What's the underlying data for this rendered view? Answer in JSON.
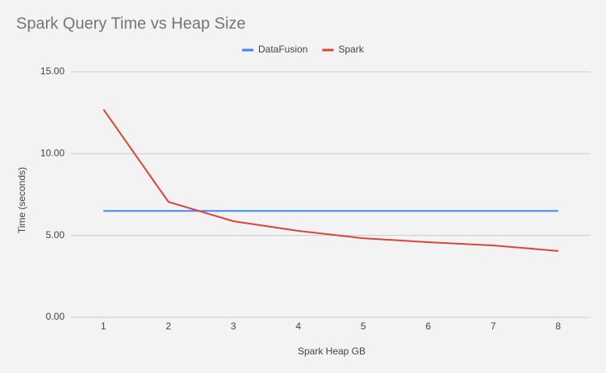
{
  "chart_data": {
    "type": "line",
    "title": "Spark Query Time vs Heap Size",
    "x_label": "Spark Heap GB",
    "y_label": "Time (seconds)",
    "categories": [
      "1",
      "2",
      "3",
      "4",
      "5",
      "6",
      "7",
      "8"
    ],
    "series": [
      {
        "name": "DataFusion",
        "color": "#4285f4",
        "values": [
          6.5,
          6.5,
          6.5,
          6.5,
          6.5,
          6.5,
          6.5,
          6.5
        ]
      },
      {
        "name": "Spark",
        "color": "#db4437",
        "values": [
          12.7,
          7.05,
          5.87,
          5.28,
          4.83,
          4.59,
          4.39,
          4.05
        ]
      }
    ],
    "ylim": [
      0,
      15
    ],
    "yticks": [
      {
        "value": 0,
        "label": "0.00"
      },
      {
        "value": 5,
        "label": "5.00"
      },
      {
        "value": 10,
        "label": "10.00"
      },
      {
        "value": 15,
        "label": "15.00"
      }
    ],
    "grid": true,
    "legend": "top"
  }
}
